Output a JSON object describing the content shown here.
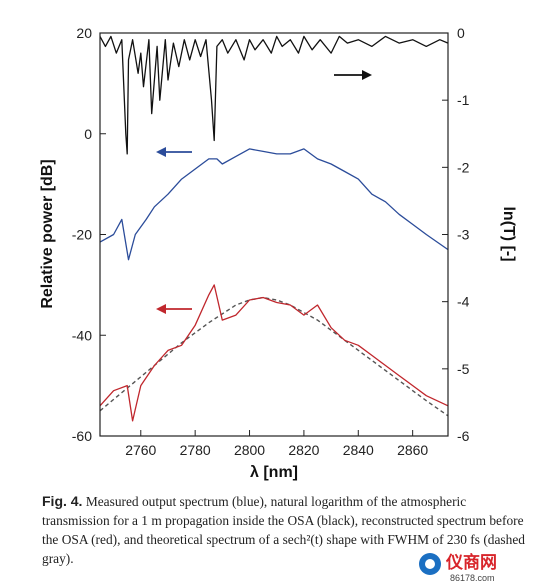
{
  "chart_data": {
    "type": "line",
    "xlabel": "λ [nm]",
    "ylabel_left": "Relative power [dB]",
    "ylabel_right": "ln(T) [-]",
    "xlim": [
      2745,
      2873
    ],
    "ylim_left": [
      -60,
      20
    ],
    "ylim_right": [
      -6,
      0
    ],
    "xticks": [
      "2760",
      "2780",
      "2800",
      "2820",
      "2840",
      "2860"
    ],
    "yticks_left": [
      "20",
      "0",
      "-20",
      "-40",
      "-60"
    ],
    "yticks_right": [
      "0",
      "-1",
      "-2",
      "-3",
      "-4",
      "-5",
      "-6"
    ],
    "grid": false,
    "series": [
      {
        "key": "blue",
        "axis": "left",
        "color": "#2b4c9a",
        "x": [
          2745,
          2750,
          2753,
          2755.5,
          2758,
          2762,
          2765,
          2770,
          2775,
          2780,
          2785,
          2788,
          2790,
          2795,
          2800,
          2805,
          2810,
          2815,
          2820,
          2825,
          2830,
          2835,
          2840,
          2845,
          2850,
          2855,
          2860,
          2865,
          2873
        ],
        "y": [
          -21.5,
          -20,
          -17,
          -25,
          -20,
          -17,
          -14.5,
          -12,
          -9,
          -7,
          -5,
          -5,
          -6,
          -4.5,
          -3,
          -3.5,
          -4,
          -4,
          -3,
          -5,
          -6,
          -7.5,
          -9,
          -12,
          -13.5,
          -16,
          -18,
          -20,
          -23
        ]
      },
      {
        "key": "red",
        "axis": "left",
        "color": "#c0272d",
        "x": [
          2745,
          2750,
          2755,
          2757,
          2760,
          2765,
          2770,
          2775,
          2780,
          2785,
          2787,
          2790,
          2795,
          2800,
          2805,
          2810,
          2815,
          2820,
          2825,
          2830,
          2835,
          2840,
          2845,
          2850,
          2855,
          2860,
          2865,
          2873
        ],
        "y": [
          -54,
          -51,
          -50,
          -57,
          -50,
          -46,
          -43,
          -42,
          -38,
          -32,
          -30,
          -37,
          -36,
          -33,
          -32.5,
          -33.5,
          -34,
          -36,
          -34,
          -38.5,
          -41,
          -42,
          -44,
          -46,
          -48,
          -50,
          -52,
          -54
        ]
      },
      {
        "key": "gray",
        "axis": "left",
        "color": "#555555",
        "dashed": true,
        "x": [
          2745,
          2755,
          2765,
          2775,
          2785,
          2795,
          2800,
          2805,
          2810,
          2815,
          2825,
          2835,
          2845,
          2855,
          2865,
          2873
        ],
        "y": [
          -55,
          -50.5,
          -46,
          -41.5,
          -37.5,
          -34,
          -33,
          -32.5,
          -33,
          -34,
          -37,
          -41,
          -45,
          -49,
          -53,
          -56
        ]
      },
      {
        "key": "black",
        "axis": "right",
        "color": "#111111",
        "x": [
          2745,
          2747,
          2749,
          2751,
          2753,
          2754.5,
          2755,
          2755.5,
          2757,
          2759,
          2760,
          2761,
          2763,
          2764,
          2766,
          2767,
          2769,
          2770,
          2772,
          2774,
          2776,
          2778,
          2780,
          2782,
          2784,
          2786,
          2787,
          2788,
          2790,
          2792,
          2795,
          2798,
          2800,
          2802,
          2805,
          2808,
          2810,
          2812,
          2815,
          2818,
          2820,
          2823,
          2826,
          2830,
          2833,
          2836,
          2840,
          2845,
          2850,
          2855,
          2860,
          2865,
          2870,
          2873
        ],
        "y": [
          -0.05,
          -0.2,
          -0.05,
          -0.3,
          -0.1,
          -1.5,
          -1.8,
          -0.4,
          -0.1,
          -0.6,
          -0.3,
          -0.8,
          -0.1,
          -1.2,
          -0.2,
          -1.0,
          -0.1,
          -0.7,
          -0.15,
          -0.5,
          -0.1,
          -0.4,
          -0.1,
          -0.35,
          -0.1,
          -1.0,
          -1.6,
          -0.2,
          -0.1,
          -0.3,
          -0.1,
          -0.4,
          -0.1,
          -0.25,
          -0.1,
          -0.3,
          -0.05,
          -0.2,
          -0.1,
          -0.3,
          -0.05,
          -0.25,
          -0.1,
          -0.3,
          -0.05,
          -0.15,
          -0.1,
          -0.2,
          -0.05,
          -0.15,
          -0.1,
          -0.2,
          -0.1,
          -0.15
        ]
      }
    ]
  },
  "caption": {
    "label": "Fig. 4.",
    "text": "Measured output spectrum (blue), natural logarithm of the atmospheric transmission for a 1 m propagation inside the OSA (black), reconstructed spectrum before the OSA (red), and theoretical spectrum of a sech²(t) shape with FWHM of 230 fs (dashed gray)."
  },
  "watermark": {
    "brand": "仪商网",
    "url": "86178.com"
  }
}
